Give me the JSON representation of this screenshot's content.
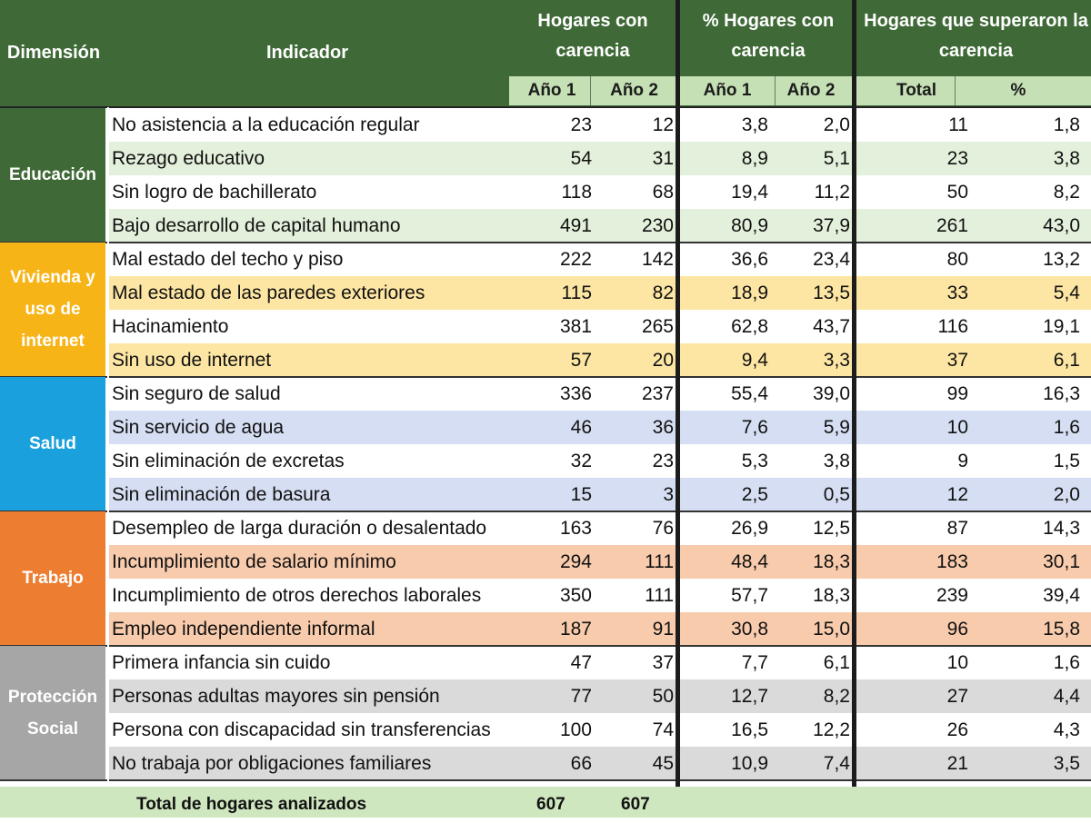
{
  "header": {
    "dimension": "Dimensión",
    "indicator": "Indicador",
    "group1": "Hogares con carencia",
    "group2": "% Hogares con carencia",
    "group3": "Hogares que superaron la carencia",
    "year1": "Año 1",
    "year2": "Año 2",
    "total": "Total",
    "pct": "%"
  },
  "colors": {
    "header": "#3f6a37",
    "subheader": "#c6e0b5"
  },
  "dimensions": [
    {
      "name": "Educación",
      "color": "#3f6a37",
      "band": "#e3f0db",
      "rows": [
        {
          "indicator": "No asistencia a la educación regular",
          "h1": "23",
          "h2": "12",
          "p1": "3,8",
          "p2": "2,0",
          "total": "11",
          "pct": "1,8"
        },
        {
          "indicator": "Rezago educativo",
          "h1": "54",
          "h2": "31",
          "p1": "8,9",
          "p2": "5,1",
          "total": "23",
          "pct": "3,8"
        },
        {
          "indicator": "Sin logro de bachillerato",
          "h1": "118",
          "h2": "68",
          "p1": "19,4",
          "p2": "11,2",
          "total": "50",
          "pct": "8,2"
        },
        {
          "indicator": "Bajo desarrollo de capital humano",
          "h1": "491",
          "h2": "230",
          "p1": "80,9",
          "p2": "37,9",
          "total": "261",
          "pct": "43,0"
        }
      ]
    },
    {
      "name": "Vivienda y uso de internet",
      "color": "#f6b417",
      "band": "#fde6a3",
      "rows": [
        {
          "indicator": "Mal estado del techo y piso",
          "h1": "222",
          "h2": "142",
          "p1": "36,6",
          "p2": "23,4",
          "total": "80",
          "pct": "13,2"
        },
        {
          "indicator": "Mal estado de las paredes exteriores",
          "h1": "115",
          "h2": "82",
          "p1": "18,9",
          "p2": "13,5",
          "total": "33",
          "pct": "5,4"
        },
        {
          "indicator": "Hacinamiento",
          "h1": "381",
          "h2": "265",
          "p1": "62,8",
          "p2": "43,7",
          "total": "116",
          "pct": "19,1"
        },
        {
          "indicator": "Sin uso de internet",
          "h1": "57",
          "h2": "20",
          "p1": "9,4",
          "p2": "3,3",
          "total": "37",
          "pct": "6,1"
        }
      ]
    },
    {
      "name": "Salud",
      "color": "#1aa0dc",
      "band": "#d5def2",
      "rows": [
        {
          "indicator": "Sin seguro de salud",
          "h1": "336",
          "h2": "237",
          "p1": "55,4",
          "p2": "39,0",
          "total": "99",
          "pct": "16,3"
        },
        {
          "indicator": "Sin servicio de agua",
          "h1": "46",
          "h2": "36",
          "p1": "7,6",
          "p2": "5,9",
          "total": "10",
          "pct": "1,6"
        },
        {
          "indicator": "Sin eliminación de excretas",
          "h1": "32",
          "h2": "23",
          "p1": "5,3",
          "p2": "3,8",
          "total": "9",
          "pct": "1,5"
        },
        {
          "indicator": "Sin eliminación de basura",
          "h1": "15",
          "h2": "3",
          "p1": "2,5",
          "p2": "0,5",
          "total": "12",
          "pct": "2,0"
        }
      ]
    },
    {
      "name": "Trabajo",
      "color": "#ec7d31",
      "band": "#f8cbac",
      "rows": [
        {
          "indicator": "Desempleo de larga duración o desalentado",
          "h1": "163",
          "h2": "76",
          "p1": "26,9",
          "p2": "12,5",
          "total": "87",
          "pct": "14,3"
        },
        {
          "indicator": "Incumplimiento de salario mínimo",
          "h1": "294",
          "h2": "111",
          "p1": "48,4",
          "p2": "18,3",
          "total": "183",
          "pct": "30,1"
        },
        {
          "indicator": "Incumplimiento de otros derechos laborales",
          "h1": "350",
          "h2": "111",
          "p1": "57,7",
          "p2": "18,3",
          "total": "239",
          "pct": "39,4"
        },
        {
          "indicator": "Empleo independiente informal",
          "h1": "187",
          "h2": "91",
          "p1": "30,8",
          "p2": "15,0",
          "total": "96",
          "pct": "15,8"
        }
      ]
    },
    {
      "name": "Protección Social",
      "color": "#a6a6a6",
      "band": "#dadada",
      "rows": [
        {
          "indicator": "Primera infancia sin cuido",
          "h1": "47",
          "h2": "37",
          "p1": "7,7",
          "p2": "6,1",
          "total": "10",
          "pct": "1,6"
        },
        {
          "indicator": "Personas adultas mayores sin pensión",
          "h1": "77",
          "h2": "50",
          "p1": "12,7",
          "p2": "8,2",
          "total": "27",
          "pct": "4,4"
        },
        {
          "indicator": "Persona con discapacidad sin transferencias",
          "h1": "100",
          "h2": "74",
          "p1": "16,5",
          "p2": "12,2",
          "total": "26",
          "pct": "4,3"
        },
        {
          "indicator": "No trabaja por obligaciones familiares",
          "h1": "66",
          "h2": "45",
          "p1": "10,9",
          "p2": "7,4",
          "total": "21",
          "pct": "3,5"
        }
      ]
    }
  ],
  "footer": {
    "label": "Total de hogares analizados",
    "year1": "607",
    "year2": "607"
  }
}
